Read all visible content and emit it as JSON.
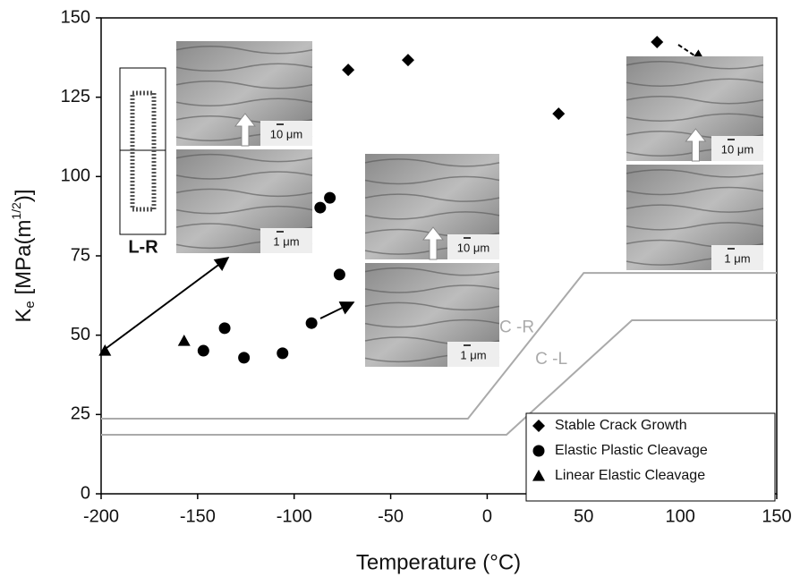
{
  "chart_data": {
    "type": "scatter",
    "xlabel": "Temperature (°C)",
    "ylabel": {
      "base": "K",
      "sub": "e",
      "main": " [MPa(m",
      "sup": "1/2",
      "end": ")]"
    },
    "xlim": [
      -200,
      150
    ],
    "xticks": [
      -200,
      -150,
      -100,
      -50,
      0,
      50,
      100,
      150
    ],
    "ylim": [
      0,
      150
    ],
    "yticks": [
      0,
      25,
      50,
      75,
      100,
      125,
      150
    ],
    "legend": "lower right",
    "series": [
      {
        "name": "Stable Crack Growth",
        "marker": "diamond",
        "color": "#000000",
        "x": [
          -72,
          -41,
          37,
          88
        ],
        "values": [
          133.6,
          136.7,
          119.8,
          142.4
        ]
      },
      {
        "name": "Elastic Plastic Cleavage",
        "marker": "circle",
        "color": "#000000",
        "x": [
          -147,
          -136,
          -126,
          -106,
          -91,
          -86.5,
          -81.5,
          -76.5
        ],
        "values": [
          45.1,
          52.2,
          42.9,
          44.3,
          53.8,
          90.2,
          93.3,
          69.1
        ]
      },
      {
        "name": "Linear Elastic Cleavage",
        "marker": "triangle",
        "color": "#000000",
        "x": [
          -198,
          -157
        ],
        "values": [
          45.1,
          48.2
        ]
      }
    ],
    "curves": [
      {
        "name": "C -R",
        "color": "#aaaaaa",
        "x": [
          -200,
          -10,
          50,
          150
        ],
        "values": [
          23.7,
          23.7,
          69.6,
          69.6
        ]
      },
      {
        "name": "C -L",
        "color": "#aaaaaa",
        "x": [
          -200,
          10,
          75,
          150
        ],
        "values": [
          18.6,
          18.6,
          54.7,
          54.7
        ]
      }
    ],
    "specimen_label": "L-R",
    "insets": [
      {
        "scale_bar": "10 μm"
      },
      {
        "scale_bar": "1 μm"
      },
      {
        "scale_bar": "10 μm"
      },
      {
        "scale_bar": "1 μm"
      },
      {
        "scale_bar": "10 μm"
      },
      {
        "scale_bar": "1 μm"
      }
    ]
  }
}
